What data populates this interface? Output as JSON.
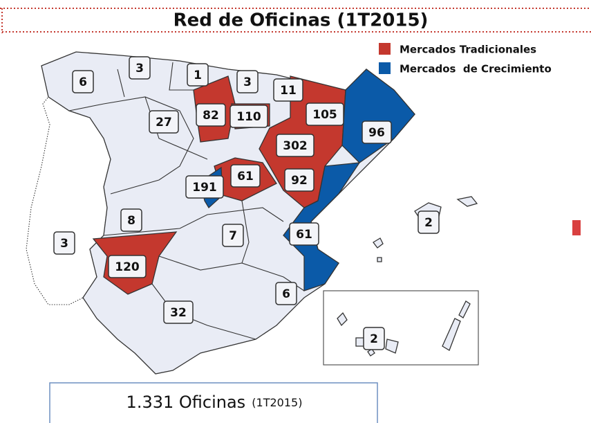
{
  "title": "Red de Oficinas (1T2015)",
  "legend": [
    "Mercados Tradicionales",
    "Mercados  de Crecimiento"
  ],
  "regions": [
    "6",
    "3",
    "1",
    "3",
    "11",
    "82",
    "110",
    "105",
    "27",
    "96",
    "302",
    "61",
    "92",
    "191",
    "8",
    "2",
    "3",
    "7",
    "61",
    "120",
    "6",
    "32",
    "2"
  ],
  "footer": {
    "total": "1.331 Oficinas",
    "period": "(1T2015)"
  }
}
